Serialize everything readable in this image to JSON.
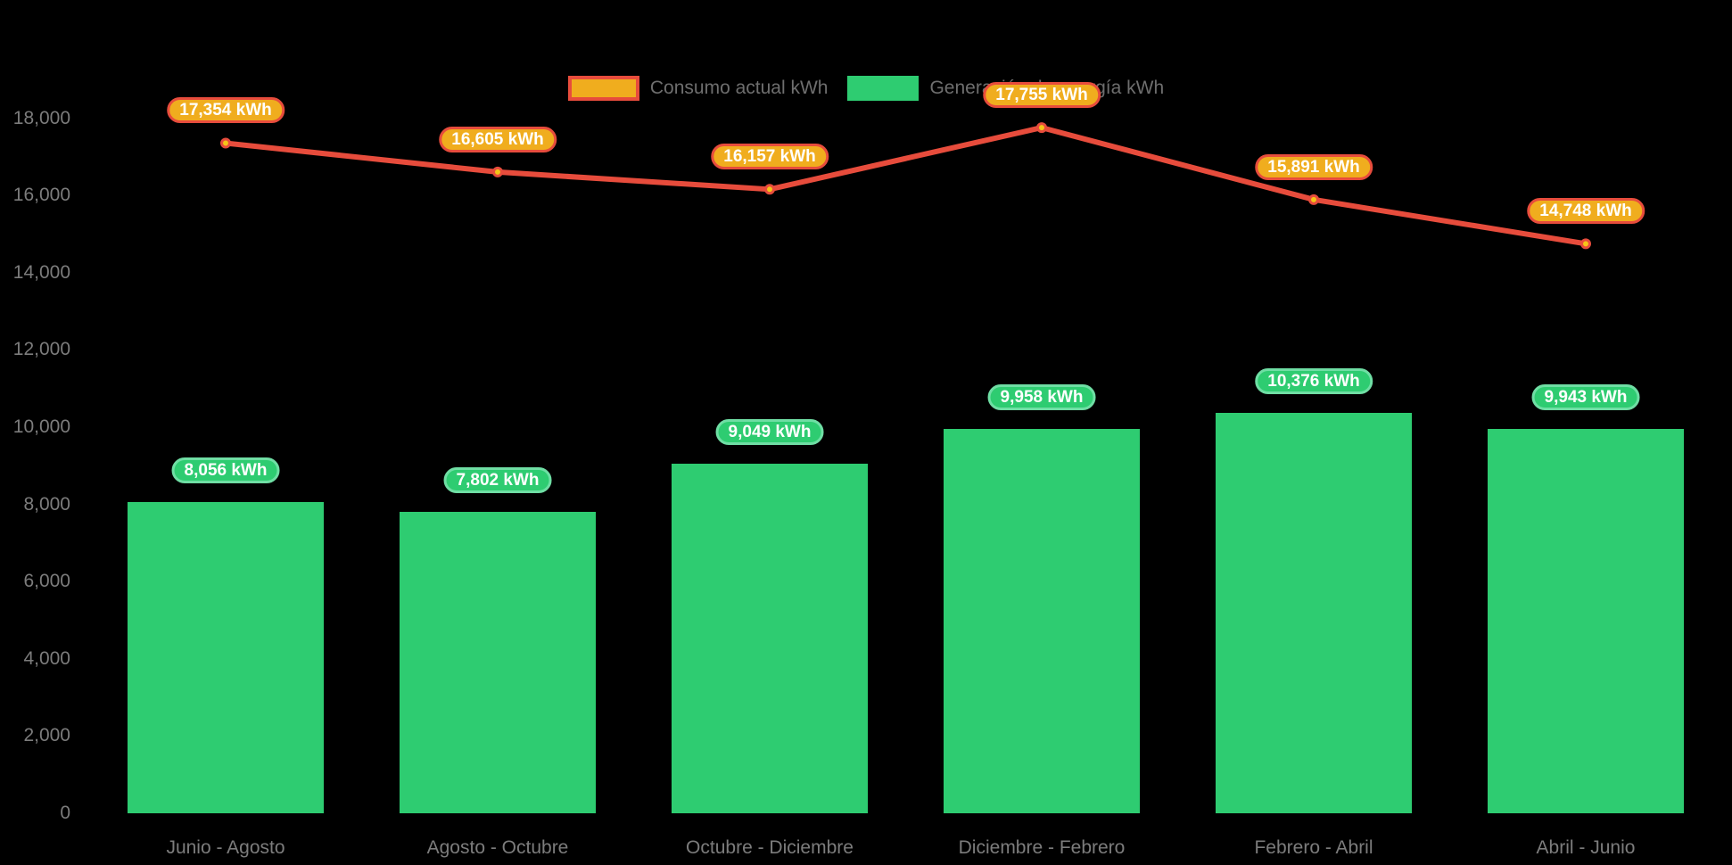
{
  "chart_data": {
    "type": "bar",
    "title": "",
    "xlabel": "",
    "ylabel": "",
    "categories": [
      "Junio - Agosto",
      "Agosto - Octubre",
      "Octubre - Diciembre",
      "Diciembre - Febrero",
      "Febrero - Abril",
      "Abril - Junio"
    ],
    "series": [
      {
        "name": "Consumo actual kWh",
        "type": "line",
        "color": "#E74C3C",
        "point_fill": "#F5C518",
        "swatch_fill": "#F0AD1E",
        "swatch_border": "#E74C3C",
        "label_bg": "#F0AD1E",
        "label_border": "#E74C3C",
        "values": [
          17354,
          16605,
          16157,
          17755,
          15891,
          14748
        ],
        "data_labels": [
          "17,354 kWh",
          "16,605 kWh",
          "16,157 kWh",
          "17,755 kWh",
          "15,891 kWh",
          "14,748 kWh"
        ]
      },
      {
        "name": "Generación de energía kWh",
        "type": "bar",
        "color": "#2ECC71",
        "swatch_fill": "#2ECC71",
        "swatch_border": "#2ECC71",
        "label_bg": "#2ECC71",
        "label_border": "#6FDEA4",
        "values": [
          8056,
          7802,
          9049,
          9958,
          10376,
          9943
        ],
        "data_labels": [
          "8,056 kWh",
          "7,802 kWh",
          "9,049 kWh",
          "9,958 kWh",
          "10,376 kWh",
          "9,943 kWh"
        ]
      }
    ],
    "ylim": [
      0,
      18000
    ],
    "ytick_step": 2000,
    "ytick_labels": [
      "0",
      "2,000",
      "4,000",
      "6,000",
      "8,000",
      "10,000",
      "12,000",
      "14,000",
      "16,000",
      "18,000"
    ],
    "grid": false,
    "legend_position": "top",
    "background": "#000000",
    "axis_text_color": "#7C7C7C",
    "legend_text_color": "#6E6E6E"
  }
}
